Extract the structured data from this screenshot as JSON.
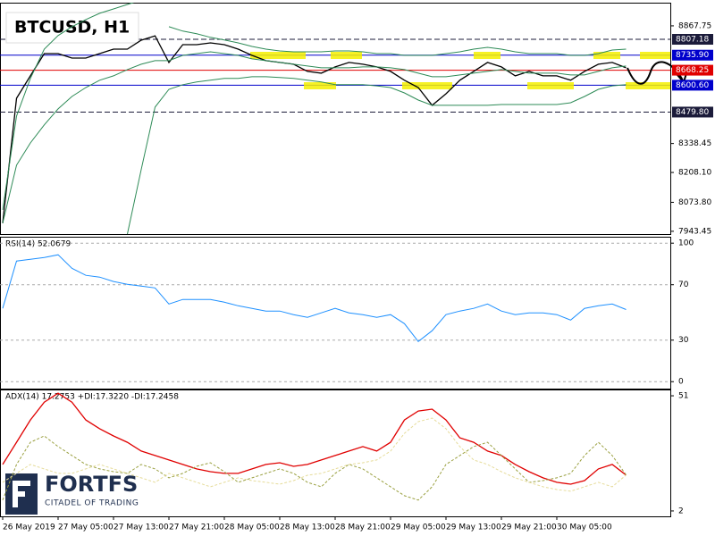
{
  "chart_data": [
    {
      "type": "line",
      "title": "BTCUSD, H1",
      "ylim": [
        7931,
        8972
      ],
      "yticks": [
        8867.75,
        8338.45,
        {
          "value": 8208.1,
          "label": "8208.10"
        },
        {
          "value": 8073.8,
          "label": "8073.80"
        },
        7943.45
      ],
      "levels": [
        {
          "value": 8807.18,
          "label": "8807.18",
          "color": "#1b1b3a",
          "style": "dashed"
        },
        {
          "value": 8735.9,
          "label": "8735.90",
          "color": "#0000cc",
          "style": "solid"
        },
        {
          "value": 8668.25,
          "label": "8668.25",
          "color": "#e00000",
          "style": "solid"
        },
        {
          "value": 8600.6,
          "label": "8600.60",
          "color": "#0000cc",
          "style": "solid"
        },
        {
          "value": 8479.8,
          "label": "8479.80",
          "color": "#1b1b3a",
          "style": "dashed"
        }
      ],
      "series": [
        {
          "color": "#000000",
          "values": [
            7980,
            8542,
            8643,
            8743,
            8743,
            8723,
            8723,
            8743,
            8763,
            8763,
            8803,
            8823,
            8703,
            8783,
            8783,
            8791,
            8783,
            8763,
            8735,
            8711,
            8703,
            8695,
            8663,
            8655,
            8683,
            8703,
            8695,
            8683,
            8663,
            8623,
            8590,
            8510,
            8562,
            8623,
            8663,
            8703,
            8683,
            8643,
            8663,
            8643,
            8643,
            8623,
            8663,
            8695,
            8703,
            8679
          ]
        },
        {
          "color": "#2e8b57",
          "values": [
            8040,
            8462,
            8631,
            8763,
            8824,
            8864,
            8896,
            8924,
            8944,
            8964,
            8984,
            null,
            8864,
            8844,
            8832,
            8816,
            8804,
            8791,
            8775,
            8763,
            8755,
            8751,
            8751,
            8751,
            8755,
            8755,
            8751,
            8743,
            8743,
            8735,
            8735,
            8735,
            8743,
            8751,
            8763,
            8771,
            8763,
            8751,
            8743,
            8743,
            8743,
            8735,
            8735,
            8743,
            8759,
            8763
          ]
        },
        {
          "color": "#2e8b57",
          "values": [
            7980,
            8241,
            8341,
            8422,
            8494,
            8550,
            8590,
            8623,
            8643,
            8671,
            8695,
            8711,
            8711,
            8735,
            8743,
            8751,
            8743,
            8735,
            8719,
            8711,
            8703,
            8695,
            8687,
            8679,
            8679,
            8679,
            8683,
            8683,
            8679,
            8671,
            8655,
            8639,
            8639,
            8647,
            8655,
            8663,
            8671,
            8663,
            8655,
            8655,
            8655,
            8647,
            8647,
            8663,
            8679,
            8687
          ]
        },
        {
          "color": "#2e8b57",
          "values": [
            null,
            null,
            null,
            null,
            null,
            null,
            null,
            null,
            null,
            7931,
            8221,
            8502,
            8582,
            8603,
            8615,
            8623,
            8631,
            8631,
            8639,
            8639,
            8635,
            8631,
            8623,
            8615,
            8603,
            8603,
            8603,
            8598,
            8590,
            8566,
            8534,
            8510,
            8510,
            8510,
            8510,
            8510,
            8514,
            8514,
            8514,
            8514,
            8514,
            8522,
            8550,
            8582,
            8598,
            8603
          ]
        }
      ]
    },
    {
      "type": "line",
      "title": "RSI(14) 52.0679",
      "ylim": [
        -5,
        104
      ],
      "yticks": [
        0,
        30,
        70,
        100
      ],
      "grid": true,
      "series": [
        {
          "color": "#1e90ff",
          "values": [
            52.9,
            87.1,
            88.4,
            89.7,
            91.6,
            81.9,
            76.8,
            75.5,
            72.3,
            70.3,
            69.0,
            67.7,
            56.1,
            59.4,
            59.4,
            59.4,
            57.4,
            54.8,
            52.9,
            51.0,
            51.0,
            48.4,
            46.5,
            49.7,
            52.9,
            49.7,
            48.4,
            46.5,
            48.4,
            41.9,
            29.0,
            36.8,
            48.4,
            51.0,
            52.9,
            56.1,
            51.0,
            48.4,
            49.7,
            49.7,
            48.4,
            44.5,
            52.9,
            54.8,
            56.1,
            52.0679
          ]
        }
      ]
    },
    {
      "type": "line",
      "title": "ADX(14) 17.2753 +DI:17.3220 -DI:17.2458",
      "ylim": [
        -0.3,
        53.3
      ],
      "yticks": [
        2,
        51
      ],
      "categories": [
        "26 May 2019",
        null,
        null,
        null,
        "27 May 05:00",
        null,
        null,
        null,
        "27 May 13:00",
        null,
        null,
        null,
        "27 May 21:00",
        null,
        null,
        null,
        "28 May 05:00",
        null,
        null,
        null,
        "28 May 13:00",
        null,
        null,
        null,
        "28 May 21:00",
        null,
        null,
        null,
        "29 May 05:00",
        null,
        null,
        null,
        "29 May 13:00",
        null,
        null,
        null,
        "29 May 21:00",
        null,
        null,
        null,
        "30 May 05:00",
        null,
        null,
        null,
        null,
        null
      ],
      "series": [
        {
          "color": "#e00000",
          "style": "solid",
          "values": [
            21.8,
            31.2,
            40.7,
            48.3,
            52.1,
            48.3,
            40.7,
            37.0,
            33.9,
            31.2,
            27.5,
            25.6,
            23.7,
            21.8,
            19.9,
            18.7,
            18.0,
            18.0,
            19.9,
            21.8,
            22.5,
            21.0,
            21.8,
            23.7,
            25.6,
            27.5,
            29.4,
            27.5,
            31.2,
            40.7,
            44.5,
            45.3,
            40.7,
            33.1,
            31.2,
            27.5,
            25.6,
            21.8,
            18.7,
            16.1,
            14.2,
            13.4,
            14.9,
            19.9,
            21.8,
            17.2753
          ]
        },
        {
          "color": "#9aa040",
          "style": "dashed",
          "values": [
            6.6,
            21.8,
            31.2,
            33.9,
            29.4,
            25.6,
            21.8,
            19.9,
            18.7,
            18.0,
            21.8,
            19.9,
            16.1,
            18.0,
            21.0,
            22.5,
            18.7,
            14.2,
            16.1,
            18.0,
            19.9,
            18.0,
            14.2,
            12.3,
            18.0,
            21.8,
            19.9,
            16.1,
            12.3,
            8.5,
            6.6,
            12.3,
            21.8,
            25.6,
            29.4,
            31.2,
            25.6,
            19.9,
            14.2,
            14.9,
            16.1,
            18.0,
            25.6,
            31.2,
            25.6,
            17.322
          ]
        },
        {
          "color": "#e6dc9a",
          "style": "dashed",
          "values": [
            14.2,
            18.0,
            21.8,
            19.9,
            18.0,
            18.0,
            19.9,
            21.8,
            19.9,
            18.0,
            16.1,
            14.2,
            18.0,
            16.1,
            14.2,
            12.3,
            14.2,
            16.1,
            14.9,
            14.2,
            13.4,
            14.9,
            17.2,
            18.0,
            19.9,
            21.8,
            22.5,
            23.7,
            27.5,
            35.0,
            40.0,
            41.5,
            37.0,
            29.4,
            23.7,
            21.8,
            18.7,
            16.1,
            14.2,
            12.3,
            11.1,
            10.4,
            12.3,
            14.2,
            12.3,
            17.2458
          ]
        }
      ]
    }
  ],
  "logo": {
    "name": "FORTFS",
    "tagline": "CITADEL OF TRADING"
  }
}
